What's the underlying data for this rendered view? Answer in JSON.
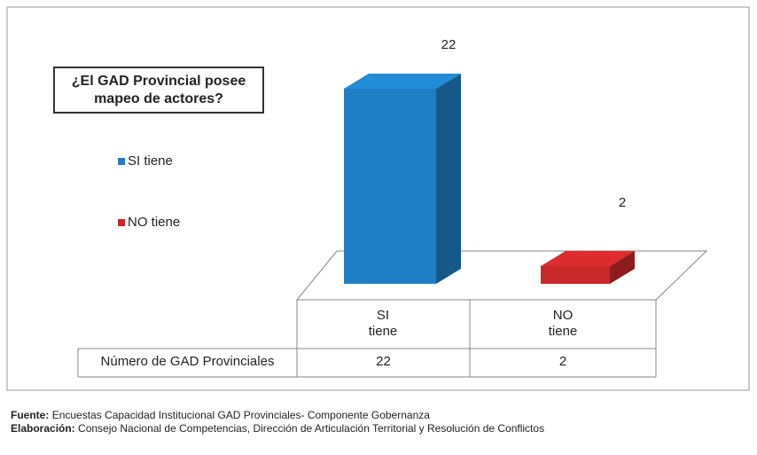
{
  "chart_data": {
    "type": "bar3d",
    "title": "¿El GAD Provincial posee mapeo de actores?",
    "categories": [
      "SI tiene",
      "NO tiene"
    ],
    "values": [
      22,
      2
    ],
    "colors": [
      "#1f7fc4",
      "#c8282a"
    ],
    "legend": "left",
    "table_row_label": "Número de GAD Provinciales",
    "notes": [
      {
        "label": "Fuente:",
        "text": "Encuestas Capacidad Institucional GAD Provinciales- Componente Gobernanza"
      },
      {
        "label": "Elaboración:",
        "text": "Consejo Nacional de Competencias, Dirección de Articulación Territorial y Resolución de Conflictos"
      }
    ]
  }
}
